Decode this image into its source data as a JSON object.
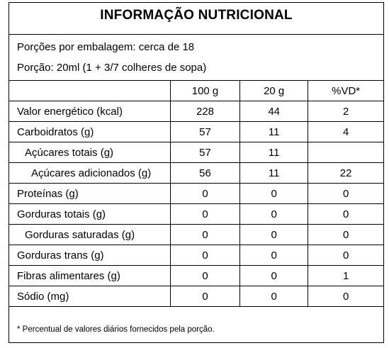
{
  "label": {
    "title": "INFORMAÇÃO NUTRICIONAL",
    "servings_per_package": "Porções por embalagem: cerca de 18",
    "serving_size": "Porção: 20ml (1 + 3/7 colheres de sopa)",
    "columns": [
      "",
      "100 g",
      "20 g",
      "%VD*"
    ],
    "rows": [
      {
        "name": "Valor energético (kcal)",
        "indent": 0,
        "per100": "228",
        "perServing": "44",
        "dv": "2"
      },
      {
        "name": "Carboidratos (g)",
        "indent": 0,
        "per100": "57",
        "perServing": "11",
        "dv": "4"
      },
      {
        "name": "Açúcares totais (g)",
        "indent": 1,
        "per100": "57",
        "perServing": "11",
        "dv": ""
      },
      {
        "name": "Açúcares adicionados (g)",
        "indent": 2,
        "per100": "56",
        "perServing": "11",
        "dv": "22"
      },
      {
        "name": "Proteínas (g)",
        "indent": 0,
        "per100": "0",
        "perServing": "0",
        "dv": "0"
      },
      {
        "name": "Gorduras totais (g)",
        "indent": 0,
        "per100": "0",
        "perServing": "0",
        "dv": "0"
      },
      {
        "name": "Gorduras saturadas (g)",
        "indent": 1,
        "per100": "0",
        "perServing": "0",
        "dv": "0"
      },
      {
        "name": "Gorduras trans (g)",
        "indent": 0,
        "per100": "0",
        "perServing": "0",
        "dv": "0"
      },
      {
        "name": "Fibras alimentares (g)",
        "indent": 0,
        "per100": "0",
        "perServing": "0",
        "dv": "1"
      },
      {
        "name": "Sódio (mg)",
        "indent": 0,
        "per100": "0",
        "perServing": "0",
        "dv": "0"
      }
    ],
    "footnote": "* Percentual de valores diários fornecidos pela porção."
  }
}
